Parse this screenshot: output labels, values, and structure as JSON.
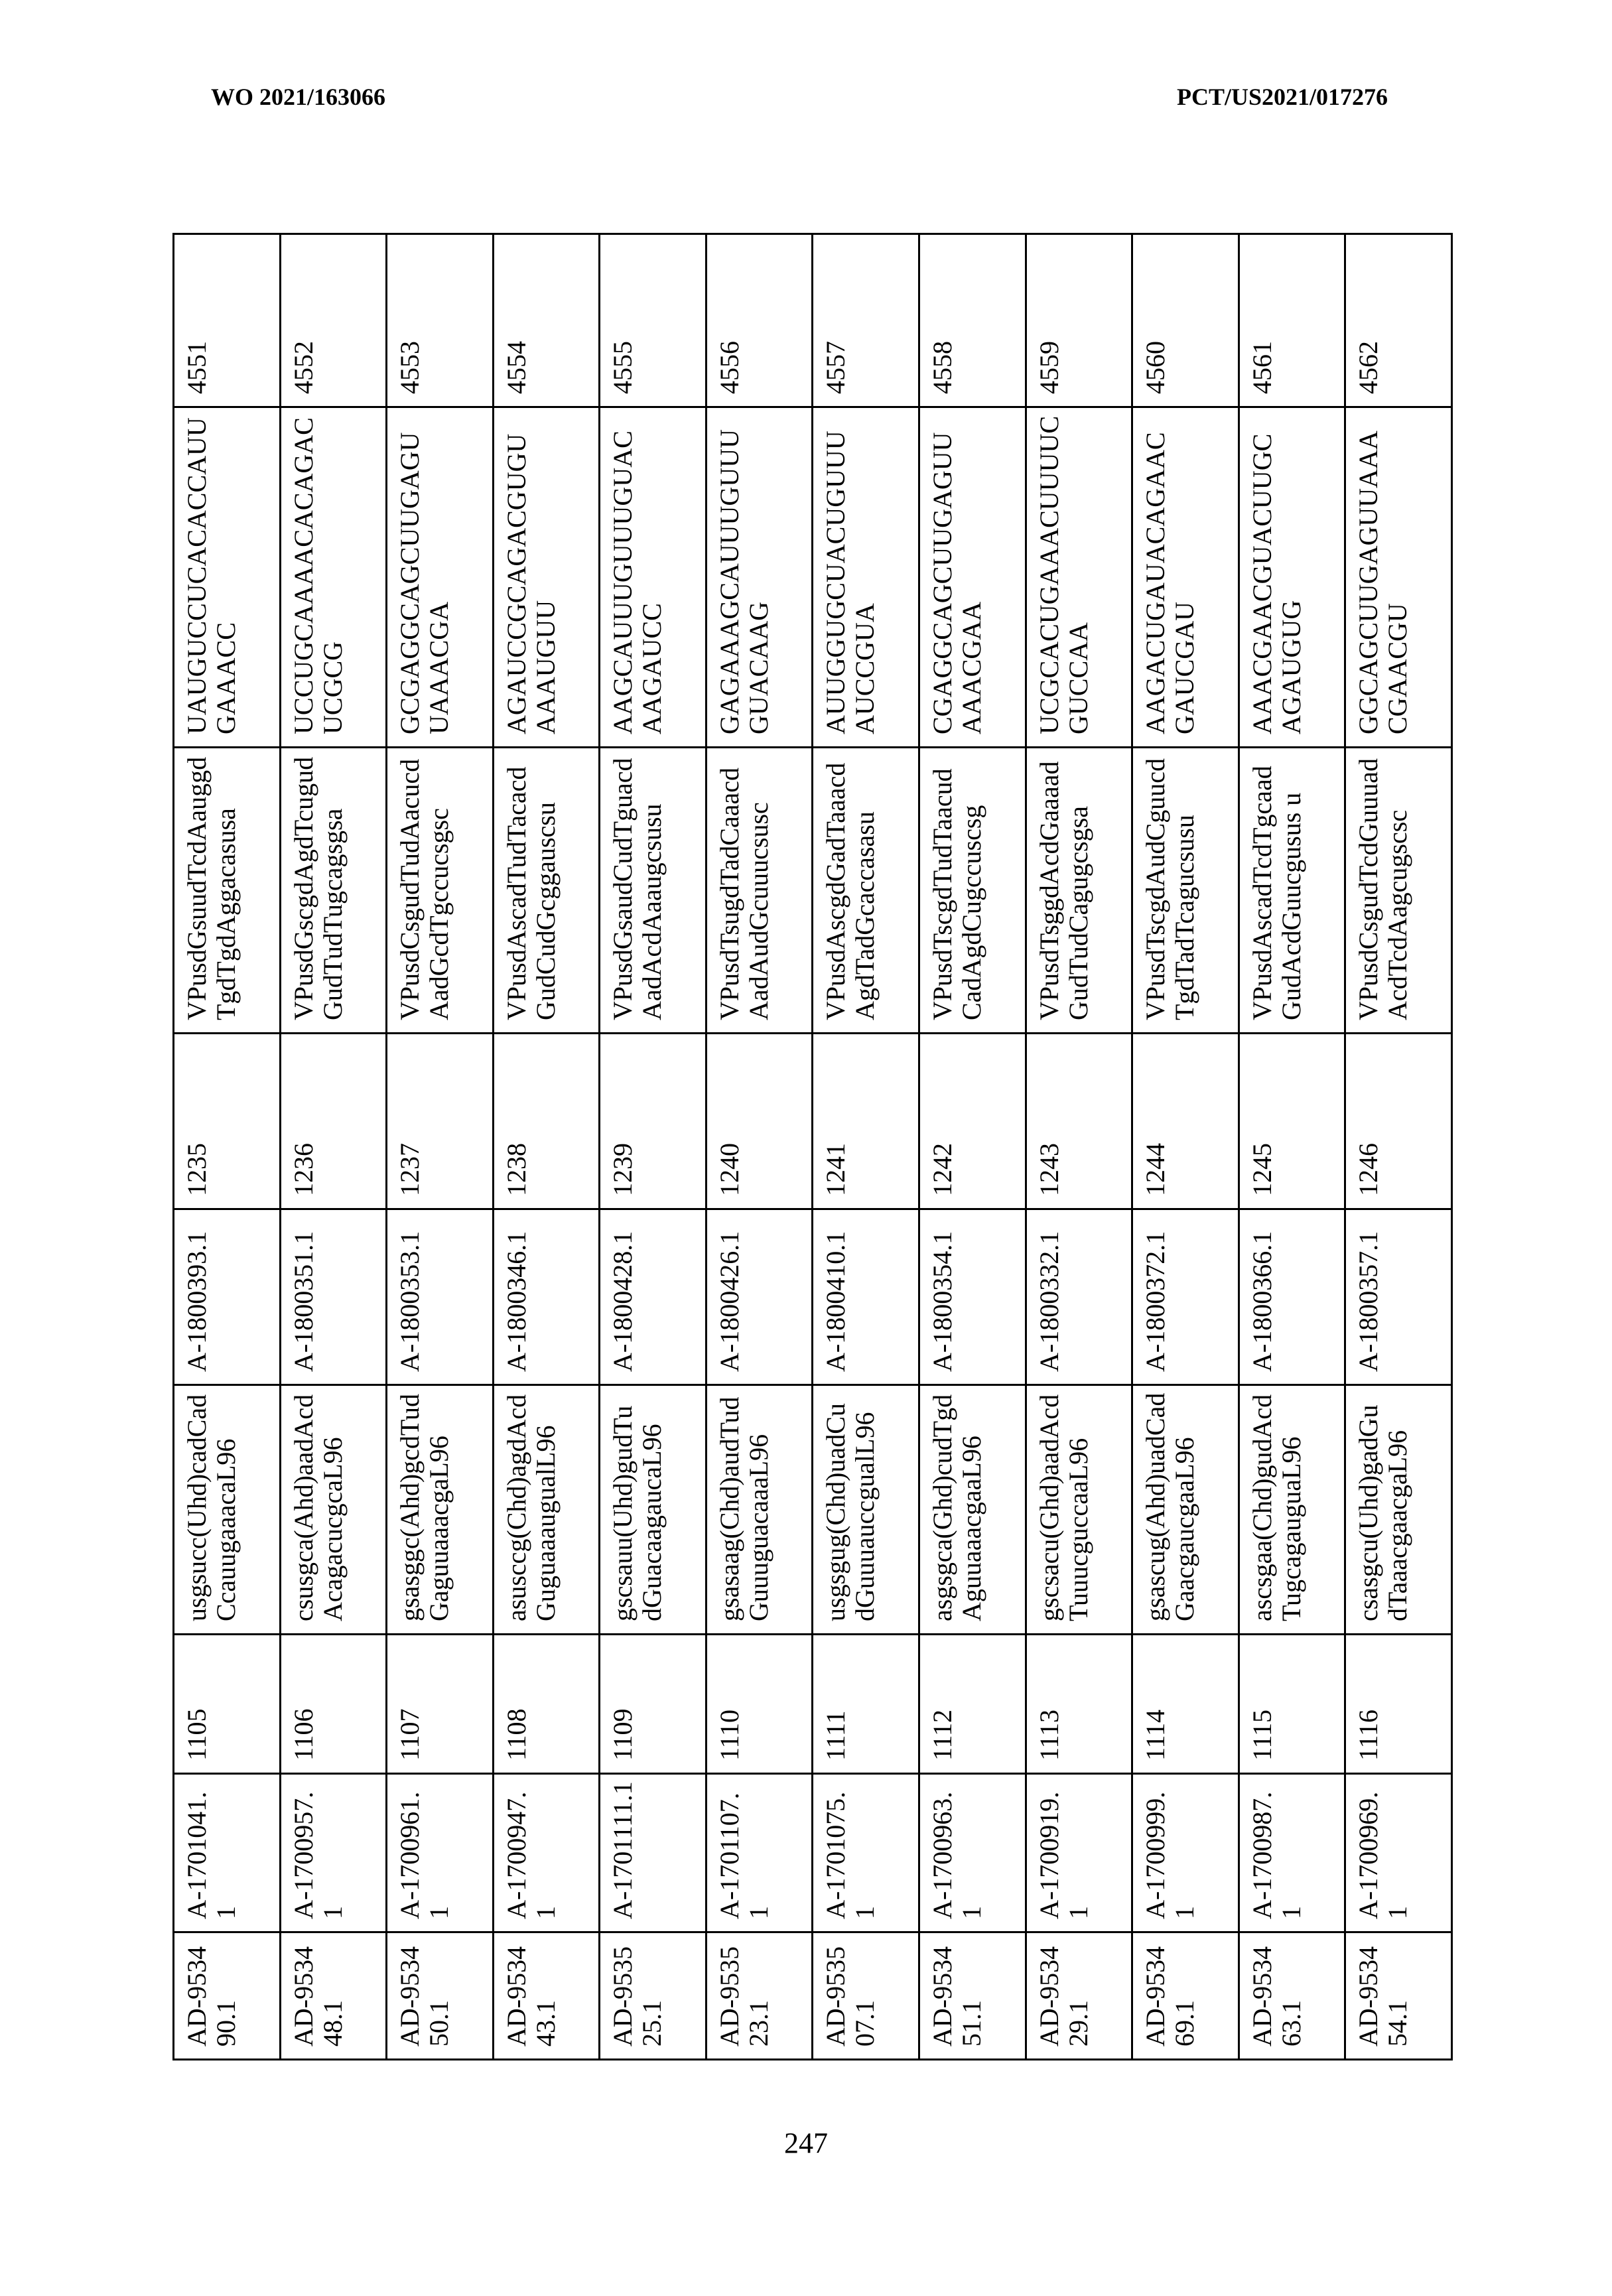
{
  "header": {
    "left": "WO 2021/163066",
    "right": "PCT/US2021/017276"
  },
  "page_number": "247",
  "table": {
    "rows": [
      {
        "duplex_id": "AD-953490.1",
        "sense_id": "A-1701041.1",
        "sense_seq_id": "1105",
        "sense_seq": "usgsucc(Uhd)cadCadCcauugaaacaL96",
        "antisense_id": "A-1800393.1",
        "antisense_seq_id": "1235",
        "antisense_seq": "VPusdGsuudTcdAauggdTgdTgdAggacasusa",
        "mrna_seq": "UAUGUCCUCACACCAUUGAAACC",
        "mrna_seq_id": "4551"
      },
      {
        "duplex_id": "AD-953448.1",
        "sense_id": "A-1700957.1",
        "sense_seq_id": "1106",
        "sense_seq": "csusgca(Ahd)aadAcdAcagacucgcaL96",
        "antisense_id": "A-1800351.1",
        "antisense_seq_id": "1236",
        "antisense_seq": "VPusdGscgdAgdTcugudGudTudTugcagsgsa",
        "mrna_seq": "UCCUGCAAAACACAGACUCGCG",
        "mrna_seq_id": "4552"
      },
      {
        "duplex_id": "AD-953450.1",
        "sense_id": "A-1700961.1",
        "sense_seq_id": "1107",
        "sense_seq": "gsasggc(Ahd)gcdTudGaguuaaacgaL96",
        "antisense_id": "A-1800353.1",
        "antisense_seq_id": "1237",
        "antisense_seq": "VPusdCsgudTudAacucdAadGcdTgccucsgsc",
        "mrna_seq": "GCGAGGCAGCUUGAGUUAAACGA",
        "mrna_seq_id": "4553"
      },
      {
        "duplex_id": "AD-953443.1",
        "sense_id": "A-1700947.1",
        "sense_seq_id": "1108",
        "sense_seq": "asusccg(Chd)agdAcdGuguaaaugualL96",
        "antisense_id": "A-1800346.1",
        "antisense_seq_id": "1238",
        "antisense_seq": "VPusdAscadTudTacacdGudCudGcggauscsu",
        "mrna_seq": "AGAUCCGCAGACGUGUAAAUGUU",
        "mrna_seq_id": "4554"
      },
      {
        "duplex_id": "AD-953525.1",
        "sense_id": "A-1701111.1",
        "sense_seq_id": "1109",
        "sense_seq": "gscsauu(Uhd)gudTudGuacaagaucaL96",
        "antisense_id": "A-1800428.1",
        "antisense_seq_id": "1239",
        "antisense_seq": "VPusdGsaudCudTguacdAadAcdAaaugcsusu",
        "mrna_seq": "AAGCAUUUGUUUGUACAAGAUCC",
        "mrna_seq_id": "4555"
      },
      {
        "duplex_id": "AD-953523.1",
        "sense_id": "A-1701107.1",
        "sense_seq_id": "1110",
        "sense_seq": "gsasaag(Chd)audTudGuuuguacaaaL96",
        "antisense_id": "A-1800426.1",
        "antisense_seq_id": "1240",
        "antisense_seq": "VPusdTsugdTadCaaacdAadAudGcuuucsusc",
        "mrna_seq": "GAGAAAGCAUUUGUUUGUACAAG",
        "mrna_seq_id": "4556"
      },
      {
        "duplex_id": "AD-953507.1",
        "sense_id": "A-1701075.1",
        "sense_seq_id": "1111",
        "sense_seq": "usgsgug(Chd)uadCudGuuuauccgualL96",
        "antisense_id": "A-1800410.1",
        "antisense_seq_id": "1241",
        "antisense_seq": "VPusdAscgdGadTaaacdAgdTadGcaccasasu",
        "mrna_seq": "AUUGGUGCUACUGUUUAUCCGUA",
        "mrna_seq_id": "4557"
      },
      {
        "duplex_id": "AD-953451.1",
        "sense_id": "A-1700963.1",
        "sense_seq_id": "1112",
        "sense_seq": "asgsgca(Ghd)cudTgdAguuaaacgaaL96",
        "antisense_id": "A-1800354.1",
        "antisense_seq_id": "1242",
        "antisense_seq": "VPusdTscgdTudTaacudCadAgdCugccuscsg",
        "mrna_seq": "CGAGGCAGCUUGAGUUAAACGAA",
        "mrna_seq_id": "4558"
      },
      {
        "duplex_id": "AD-953429.1",
        "sense_id": "A-1700919.1",
        "sense_seq_id": "1113",
        "sense_seq": "gscsacu(Ghd)aadAcdTuuucguccaaL96",
        "antisense_id": "A-1800332.1",
        "antisense_seq_id": "1243",
        "antisense_seq": "VPusdTsggdAcdGaaaadGudTudCagugcsgsa",
        "mrna_seq": "UCGCACUGAAACUUUUCGUCCAA",
        "mrna_seq_id": "4559"
      },
      {
        "duplex_id": "AD-953469.1",
        "sense_id": "A-1700999.1",
        "sense_seq_id": "1114",
        "sense_seq": "gsascug(Ahd)uadCadGaacgaucgaaL96",
        "antisense_id": "A-1800372.1",
        "antisense_seq_id": "1244",
        "antisense_seq": "VPusdTscgdAudCguucdTgdTadTcagucsusu",
        "mrna_seq": "AAGACUGAUACAGAACGAUCGAU",
        "mrna_seq_id": "4560"
      },
      {
        "duplex_id": "AD-953463.1",
        "sense_id": "A-1700987.1",
        "sense_seq_id": "1115",
        "sense_seq": "ascsgaa(Chd)gudAcdTugcagauguaL96",
        "antisense_id": "A-1800366.1",
        "antisense_seq_id": "1245",
        "antisense_seq": "VPusdAscadTcdTgcaadGudAcdGuucgusus u",
        "mrna_seq": "AAACGAACGUACUUGCAGAUGUG",
        "mrna_seq_id": "4561"
      },
      {
        "duplex_id": "AD-953454.1",
        "sense_id": "A-1700969.1",
        "sense_seq_id": "1116",
        "sense_seq": "csasgcu(Uhd)gadGudTaaacgaacgaL96",
        "antisense_id": "A-1800357.1",
        "antisense_seq_id": "1246",
        "antisense_seq": "VPusdCsgudTcdGuuuadAcdTcdAagcugscsc",
        "mrna_seq": "GGCAGCUUGAGUUAAACGAACGU",
        "mrna_seq_id": "4562"
      }
    ]
  }
}
